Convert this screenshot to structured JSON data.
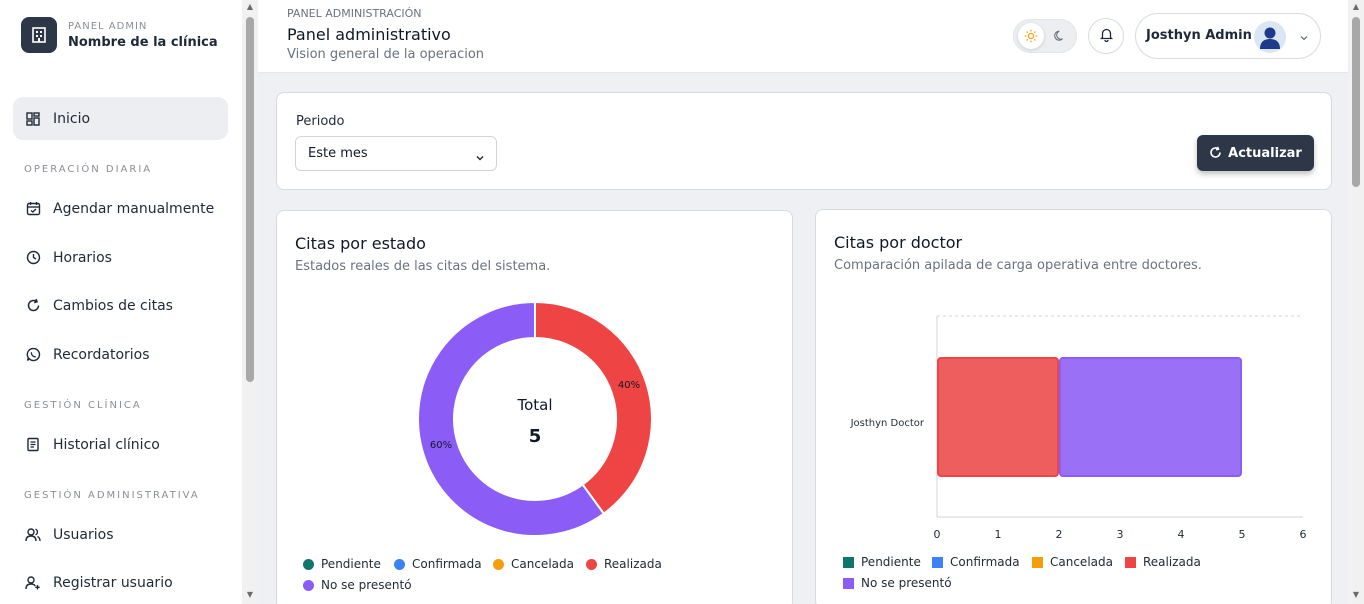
{
  "brand": {
    "kicker": "PANEL ADMIN",
    "name": "Nombre de la clínica",
    "icon": "building-icon"
  },
  "sidebar": {
    "home": {
      "label": "Inicio",
      "icon": "dashboard-icon"
    },
    "sections": [
      {
        "title": "OPERACIÓN DIARIA"
      },
      {
        "title": "GESTIÓN CLÍNICA"
      },
      {
        "title": "GESTIÓN ADMINISTRATIVA"
      }
    ],
    "items": [
      {
        "label": "Agendar manualmente",
        "icon": "calendar-check-icon"
      },
      {
        "label": "Horarios",
        "icon": "clock-icon"
      },
      {
        "label": "Cambios de citas",
        "icon": "refresh-icon"
      },
      {
        "label": "Recordatorios",
        "icon": "whatsapp-icon"
      },
      {
        "label": "Historial clínico",
        "icon": "document-icon"
      },
      {
        "label": "Usuarios",
        "icon": "users-icon"
      },
      {
        "label": "Registrar usuario",
        "icon": "user-plus-icon"
      }
    ]
  },
  "header": {
    "crumb": "PANEL ADMINISTRACIÓN",
    "title": "Panel administrativo",
    "subtitle": "Vision general de la operacion",
    "user_name": "Josthyn Admin"
  },
  "filter": {
    "label": "Periodo",
    "selected": "Este mes",
    "refresh_label": "Actualizar"
  },
  "colors": {
    "pendiente": "#0f766e",
    "confirmada": "#3b82f6",
    "cancelada": "#f59e0b",
    "realizada": "#ef4444",
    "no_se_presento": "#8b5cf6",
    "dark": "#2d3748"
  },
  "chart_data": [
    {
      "type": "pie",
      "title": "Citas por estado",
      "subtitle": "Estados reales de las citas del sistema.",
      "center_label": "Total",
      "center_value": "5",
      "categories": [
        "Pendiente",
        "Confirmada",
        "Cancelada",
        "Realizada",
        "No se presentó"
      ],
      "values": [
        0,
        0,
        0,
        2,
        3
      ],
      "data_labels": {
        "realizada": "40%",
        "no_se_presento": "60%"
      },
      "legend": "bottom"
    },
    {
      "type": "bar",
      "orientation": "horizontal",
      "stacked": true,
      "title": "Citas por doctor",
      "subtitle": "Comparación apilada de carga operativa entre doctores.",
      "categories": [
        "Josthyn Doctor"
      ],
      "series": [
        {
          "name": "Pendiente",
          "values": [
            0
          ]
        },
        {
          "name": "Confirmada",
          "values": [
            0
          ]
        },
        {
          "name": "Cancelada",
          "values": [
            0
          ]
        },
        {
          "name": "Realizada",
          "values": [
            2
          ]
        },
        {
          "name": "No se presentó",
          "values": [
            3
          ]
        }
      ],
      "xlim": [
        0,
        6
      ],
      "xticks": [
        "0",
        "1",
        "2",
        "3",
        "4",
        "5",
        "6"
      ],
      "legend": "bottom"
    }
  ]
}
